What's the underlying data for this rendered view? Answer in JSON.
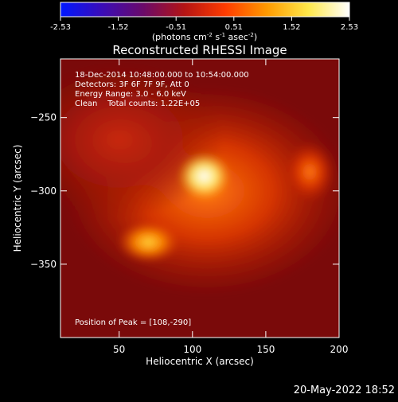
{
  "colorbar": {
    "ticks": [
      "-2.53",
      "-1.52",
      "-0.51",
      "0.51",
      "1.52",
      "2.53"
    ],
    "unit_label_main": "(photons cm",
    "unit_sup1": "-2",
    "unit_mid": " s",
    "unit_sup2": "-1",
    "unit_mid2": " asec",
    "unit_sup3": "-2",
    "unit_end": ")",
    "stops": [
      "#0018ff",
      "#3a0cb8",
      "#6a0a6a",
      "#b41414",
      "#ff3c00",
      "#ff9a00",
      "#ffe84a",
      "#ffffff"
    ]
  },
  "chart_data": {
    "type": "heatmap",
    "title": "Reconstructed RHESSI Image",
    "xlabel": "Heliocentric X (arcsec)",
    "ylabel": "Heliocentric Y (arcsec)",
    "xlim": [
      10,
      200
    ],
    "ylim": [
      -400,
      -210
    ],
    "xticks": [
      50,
      100,
      150,
      200
    ],
    "yticks": [
      -250,
      -300,
      -350
    ],
    "annotations": [
      "18-Dec-2014 10:48:00.000 to 10:54:00.000",
      "Detectors: 3F 6F 7F 9F, Att 0",
      "Energy Range: 3.0 - 6.0 keV",
      "Clean    Total counts: 1.22E+05"
    ],
    "peak_label": "Position of Peak = [108,-290]",
    "sources": [
      {
        "x": 108,
        "y": -290,
        "intensity": 1.0,
        "sx": 10,
        "sy": 9
      },
      {
        "x": 70,
        "y": -335,
        "intensity": 0.62,
        "sx": 12,
        "sy": 8
      },
      {
        "x": 180,
        "y": -287,
        "intensity": 0.55,
        "sx": 10,
        "sy": 12
      },
      {
        "x": 110,
        "y": -300,
        "intensity": 0.55,
        "sx": 55,
        "sy": 40
      },
      {
        "x": 50,
        "y": -265,
        "intensity": 0.35,
        "sx": 40,
        "sy": 30
      }
    ]
  },
  "footer": {
    "date": "20-May-2022 18:52"
  }
}
